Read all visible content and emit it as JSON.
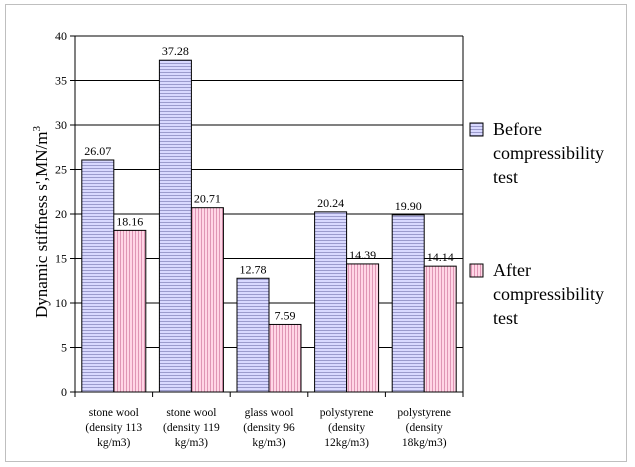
{
  "chart_data": {
    "type": "bar",
    "categories": [
      [
        "stone wool",
        "(density 113",
        "kg/m3)"
      ],
      [
        "stone wool",
        "(density 119",
        "kg/m3)"
      ],
      [
        "glass wool",
        "(density 96",
        "kg/m3)"
      ],
      [
        "polystyrene",
        "(density",
        "12kg/m3)"
      ],
      [
        "polystyrene",
        "(density",
        "18kg/m3)"
      ]
    ],
    "series": [
      {
        "name": [
          "Before",
          "compressibility",
          "test"
        ],
        "values": [
          26.07,
          37.28,
          12.78,
          20.24,
          19.9
        ],
        "labels": [
          "26.07",
          "37.28",
          "12.78",
          "20.24",
          "19.90"
        ],
        "color": "#ccccff"
      },
      {
        "name": [
          "After",
          "compressibility",
          "test"
        ],
        "values": [
          18.16,
          20.71,
          7.59,
          14.39,
          14.14
        ],
        "labels": [
          "18.16",
          "20.71",
          "7.59",
          "14.39",
          "14.14"
        ],
        "color": "#ffcce0"
      }
    ],
    "ylabel_main": "Dynamic stiffness s',MN/m",
    "ylabel_sup": "3",
    "ylim": [
      0,
      40
    ],
    "yticks": [
      0,
      5,
      10,
      15,
      20,
      25,
      30,
      35,
      40
    ],
    "grid": true,
    "legend_position": "right"
  }
}
